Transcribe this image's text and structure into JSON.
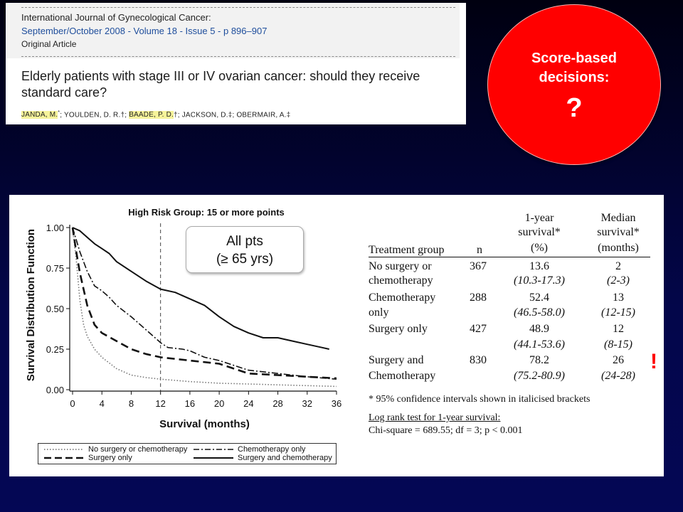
{
  "citation": {
    "journal": "International Journal of Gynecological Cancer:",
    "issue": "September/October 2008 - Volume 18 - Issue 5 - p 896–907",
    "article_type": "Original Article",
    "title": "Elderly patients with stage III or IV ovarian cancer: should they receive standard care?",
    "authors": [
      {
        "name": "JANDA, M.",
        "mark": "*",
        "highlight": true
      },
      {
        "name": "YOULDEN, D. R.",
        "mark": "†",
        "highlight": false
      },
      {
        "name": "BAADE, P. D.",
        "mark": "†",
        "highlight": true
      },
      {
        "name": "JACKSON, D.",
        "mark": "‡",
        "highlight": false
      },
      {
        "name": "OBERMAIR, A.",
        "mark": "‡",
        "highlight": false
      }
    ]
  },
  "callout": {
    "line1": "Score-based",
    "line2": "decisions:",
    "mark": "?"
  },
  "annotation_box": {
    "line1": "All pts",
    "line2": "(≥ 65 yrs)"
  },
  "exclamation": "!",
  "chart_data": {
    "type": "line",
    "title": "High Risk Group: 15 or more points",
    "xlabel": "Survival (months)",
    "ylabel": "Survival Distribution Function",
    "xlim": [
      0,
      36
    ],
    "ylim": [
      0,
      1
    ],
    "xticks": [
      0,
      4,
      8,
      12,
      16,
      20,
      24,
      28,
      32,
      36
    ],
    "yticks": [
      "0.00",
      "0.25",
      "0.50",
      "0.75",
      "1.00"
    ],
    "reference_line_x": 12,
    "series": [
      {
        "name": "No surgery or chemotherapy",
        "style": "dotted",
        "points": [
          [
            0,
            1.0
          ],
          [
            0.5,
            0.8
          ],
          [
            1,
            0.55
          ],
          [
            1.5,
            0.4
          ],
          [
            2,
            0.33
          ],
          [
            3,
            0.25
          ],
          [
            4,
            0.2
          ],
          [
            6,
            0.13
          ],
          [
            8,
            0.09
          ],
          [
            10,
            0.075
          ],
          [
            12,
            0.065
          ],
          [
            16,
            0.05
          ],
          [
            20,
            0.04
          ],
          [
            24,
            0.035
          ],
          [
            28,
            0.03
          ],
          [
            32,
            0.025
          ],
          [
            36,
            0.02
          ]
        ]
      },
      {
        "name": "Chemotherapy only",
        "style": "dashdot",
        "points": [
          [
            0,
            1.0
          ],
          [
            1,
            0.85
          ],
          [
            2,
            0.73
          ],
          [
            3,
            0.64
          ],
          [
            4,
            0.61
          ],
          [
            5,
            0.57
          ],
          [
            6,
            0.52
          ],
          [
            8,
            0.45
          ],
          [
            10,
            0.37
          ],
          [
            12,
            0.29
          ],
          [
            13,
            0.26
          ],
          [
            15,
            0.25
          ],
          [
            16,
            0.24
          ],
          [
            18,
            0.2
          ],
          [
            20,
            0.18
          ],
          [
            24,
            0.12
          ],
          [
            28,
            0.1
          ],
          [
            32,
            0.08
          ],
          [
            36,
            0.065
          ]
        ]
      },
      {
        "name": "Surgery only",
        "style": "dashed",
        "points": [
          [
            0,
            1.0
          ],
          [
            0.5,
            0.85
          ],
          [
            1,
            0.72
          ],
          [
            2,
            0.52
          ],
          [
            3,
            0.4
          ],
          [
            4,
            0.35
          ],
          [
            6,
            0.3
          ],
          [
            8,
            0.25
          ],
          [
            10,
            0.22
          ],
          [
            12,
            0.2
          ],
          [
            16,
            0.18
          ],
          [
            20,
            0.16
          ],
          [
            24,
            0.1
          ],
          [
            28,
            0.09
          ],
          [
            32,
            0.08
          ],
          [
            36,
            0.07
          ]
        ]
      },
      {
        "name": "Surgery and chemotherapy",
        "style": "solid",
        "points": [
          [
            0,
            1.0
          ],
          [
            1,
            0.98
          ],
          [
            2,
            0.94
          ],
          [
            3,
            0.9
          ],
          [
            4,
            0.87
          ],
          [
            5,
            0.84
          ],
          [
            6,
            0.79
          ],
          [
            8,
            0.73
          ],
          [
            10,
            0.67
          ],
          [
            12,
            0.62
          ],
          [
            14,
            0.6
          ],
          [
            16,
            0.56
          ],
          [
            18,
            0.52
          ],
          [
            20,
            0.45
          ],
          [
            22,
            0.39
          ],
          [
            24,
            0.35
          ],
          [
            26,
            0.32
          ],
          [
            28,
            0.32
          ],
          [
            30,
            0.3
          ],
          [
            32,
            0.28
          ],
          [
            34,
            0.26
          ],
          [
            35,
            0.25
          ]
        ]
      }
    ],
    "legend": [
      "No surgery or chemotherapy",
      "Chemotherapy only",
      "Surgery only",
      "Surgery and chemotherapy"
    ]
  },
  "table": {
    "headers": {
      "group": "Treatment group",
      "n": "n",
      "one_year": [
        "1-year",
        "survival*",
        "(%)"
      ],
      "median": [
        "Median",
        "survival*",
        "(months)"
      ]
    },
    "rows": [
      {
        "group": [
          "No surgery or",
          "chemotherapy"
        ],
        "n": "367",
        "one_year": "13.6",
        "one_year_ci": "(10.3-17.3)",
        "median": "2",
        "median_ci": "(2-3)"
      },
      {
        "group": [
          "Chemotherapy",
          "only"
        ],
        "n": "288",
        "one_year": "52.4",
        "one_year_ci": "(46.5-58.0)",
        "median": "13",
        "median_ci": "(12-15)"
      },
      {
        "group": [
          "Surgery only",
          ""
        ],
        "n": "427",
        "one_year": "48.9",
        "one_year_ci": "(44.1-53.6)",
        "median": "12",
        "median_ci": "(8-15)"
      },
      {
        "group": [
          "Surgery and",
          "Chemotherapy"
        ],
        "n": "830",
        "one_year": "78.2",
        "one_year_ci": "(75.2-80.9)",
        "median": "26",
        "median_ci": "(24-28)"
      }
    ],
    "footnote": "* 95% confidence intervals shown in italicised brackets",
    "logrank_title": "Log rank test for 1-year survival:",
    "logrank_result": "Chi-square = 689.55; df = 3; p < 0.001"
  }
}
